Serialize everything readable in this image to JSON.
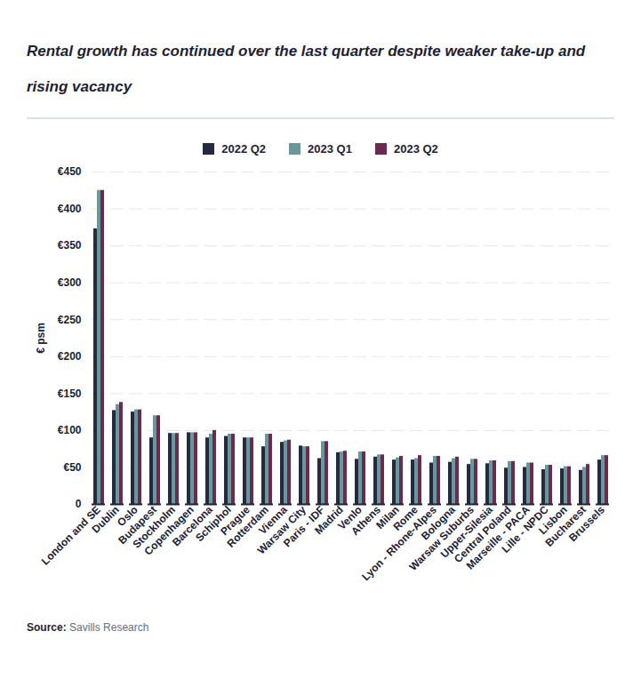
{
  "chart_data": {
    "type": "bar",
    "title": "Rental growth has continued over the last quarter despite weaker take-up and rising vacancy",
    "y_label": "€ psm",
    "source_label": "Source:",
    "source": "Savills Research",
    "categories": [
      "London and SE",
      "Dublin",
      "Oslo",
      "Budapest",
      "Stockholm",
      "Copenhagen",
      "Barcelona",
      "Schiphol",
      "Prague",
      "Rotterdam",
      "Vienna",
      "Warsaw City",
      "Paris - IDF",
      "Madrid",
      "Venlo",
      "Athens",
      "Milan",
      "Rome",
      "Lyon - Rhone-Alpes",
      "Bologna",
      "Warsaw Suburbs",
      "Upper-Silesia",
      "Central Poland",
      "Marseille - PACA",
      "Lille - NPDC",
      "Lisbon",
      "Bucharest",
      "Brussels"
    ],
    "series": [
      {
        "name": "2022 Q2",
        "color": "#262a40",
        "values": [
          373,
          127,
          125,
          90,
          96,
          97,
          90,
          92,
          90,
          78,
          84,
          79,
          62,
          70,
          61,
          64,
          60,
          60,
          56,
          57,
          54,
          55,
          49,
          50,
          47,
          48,
          46,
          60
        ]
      },
      {
        "name": "2023 Q1",
        "color": "#65999c",
        "values": [
          425,
          135,
          128,
          120,
          96,
          97,
          95,
          95,
          90,
          95,
          86,
          78,
          85,
          71,
          71,
          67,
          63,
          62,
          65,
          62,
          61,
          59,
          58,
          56,
          53,
          51,
          50,
          66
        ]
      },
      {
        "name": "2023 Q2",
        "color": "#6b2b4e",
        "values": [
          425,
          138,
          128,
          120,
          96,
          97,
          100,
          95,
          90,
          95,
          87,
          78,
          85,
          72,
          71,
          67,
          65,
          66,
          65,
          64,
          61,
          59,
          58,
          56,
          53,
          51,
          54,
          66
        ]
      }
    ],
    "ylim": [
      0,
      450
    ],
    "yticks": [
      0,
      {
        "value": 50,
        "label": "€50"
      },
      {
        "value": 100,
        "label": "€100"
      },
      {
        "value": 150,
        "label": "€150"
      },
      {
        "value": 200,
        "label": "€200"
      },
      {
        "value": 250,
        "label": "€250"
      },
      {
        "value": 300,
        "label": "€300"
      },
      {
        "value": 350,
        "label": "€350"
      },
      {
        "value": 400,
        "label": "€400"
      },
      {
        "value": 450,
        "label": "€450"
      }
    ],
    "grid": true,
    "legend": "top"
  }
}
